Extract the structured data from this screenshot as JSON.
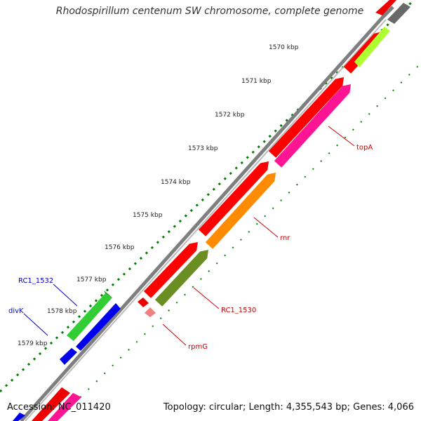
{
  "title": "Rhodospirillum centenum SW chromosome, complete genome",
  "footer": {
    "accession": "Accession: NC_011420",
    "summary": "Topology: circular; Length: 4,355,543 bp; Genes: 4,066"
  },
  "kbp_ticks": [
    "1570 kbp",
    "1571 kbp",
    "1572 kbp",
    "1573 kbp",
    "1574 kbp",
    "1575 kbp",
    "1576 kbp",
    "1577 kbp",
    "1578 kbp",
    "1579 kbp"
  ],
  "gene_labels": {
    "topA": "topA",
    "rnr": "rnr",
    "rc1_1530": "RC1_1530",
    "rpmG": "rpmG",
    "rc1_1532": "RC1_1532",
    "divK": "divK"
  },
  "colors": {
    "backbone": "#808080",
    "cds": "#ff0000",
    "topA": "#ff1493",
    "rnr": "#ff8c00",
    "rc1_1530": "#6b8e23",
    "rc1_1532": "#32cd32",
    "divK": "#0000ff",
    "lime": "#adff2f",
    "dark_gray": "#696969",
    "scale_dots": "#008000",
    "label_red": "#cc0000",
    "label_blue": "#0000cc"
  }
}
